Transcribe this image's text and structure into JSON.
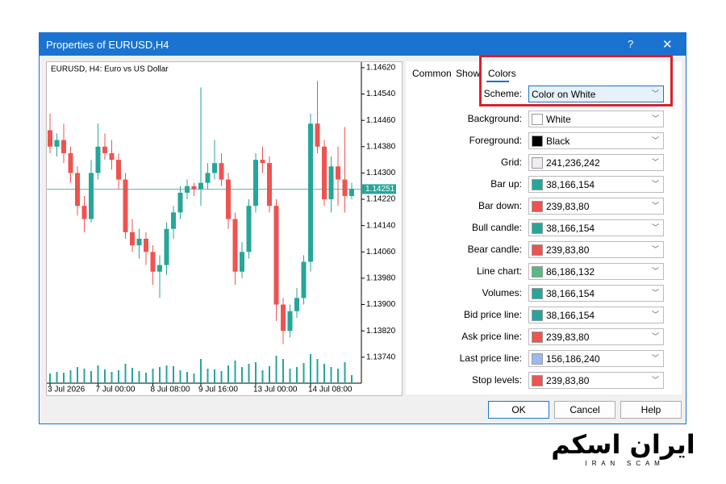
{
  "window": {
    "title": "Properties of EURUSD,H4",
    "help": "?",
    "close": "✕"
  },
  "chart_data": {
    "type": "candlestick",
    "title": "EURUSD, H4:  Euro vs US Dollar",
    "candles": [
      [
        1.1443,
        1.1448,
        1.1436,
        1.1438
      ],
      [
        1.1438,
        1.1442,
        1.1435,
        1.144
      ],
      [
        1.144,
        1.1445,
        1.1433,
        1.1436
      ],
      [
        1.1436,
        1.1438,
        1.1427,
        1.143
      ],
      [
        1.143,
        1.1432,
        1.1417,
        1.142
      ],
      [
        1.142,
        1.1423,
        1.1412,
        1.1416
      ],
      [
        1.1416,
        1.1434,
        1.1415,
        1.143
      ],
      [
        1.143,
        1.1445,
        1.1428,
        1.1438
      ],
      [
        1.1438,
        1.1442,
        1.1434,
        1.1436
      ],
      [
        1.1436,
        1.144,
        1.1431,
        1.1434
      ],
      [
        1.1434,
        1.1436,
        1.1425,
        1.1428
      ],
      [
        1.1428,
        1.143,
        1.141,
        1.1412
      ],
      [
        1.1412,
        1.1416,
        1.1406,
        1.1408
      ],
      [
        1.1408,
        1.1413,
        1.1404,
        1.141
      ],
      [
        1.141,
        1.1412,
        1.1402,
        1.1406
      ],
      [
        1.1406,
        1.1408,
        1.1396,
        1.14
      ],
      [
        1.14,
        1.1405,
        1.1392,
        1.1402
      ],
      [
        1.1402,
        1.1415,
        1.1399,
        1.1413
      ],
      [
        1.1413,
        1.142,
        1.141,
        1.1418
      ],
      [
        1.1418,
        1.1426,
        1.1416,
        1.1424
      ],
      [
        1.1424,
        1.1428,
        1.1422,
        1.1426
      ],
      [
        1.1426,
        1.1427,
        1.1423,
        1.1425
      ],
      [
        1.1425,
        1.1456,
        1.142,
        1.1427
      ],
      [
        1.1427,
        1.1433,
        1.1425,
        1.143
      ],
      [
        1.143,
        1.144,
        1.1428,
        1.1433
      ],
      [
        1.1433,
        1.1436,
        1.1426,
        1.1428
      ],
      [
        1.1428,
        1.143,
        1.1413,
        1.1416
      ],
      [
        1.1416,
        1.1418,
        1.1396,
        1.14
      ],
      [
        1.14,
        1.1409,
        1.1398,
        1.1406
      ],
      [
        1.1406,
        1.1422,
        1.1404,
        1.142
      ],
      [
        1.142,
        1.1436,
        1.1418,
        1.1434
      ],
      [
        1.1434,
        1.1438,
        1.143,
        1.1433
      ],
      [
        1.1433,
        1.1435,
        1.1418,
        1.142
      ],
      [
        1.142,
        1.1422,
        1.1385,
        1.139
      ],
      [
        1.139,
        1.1392,
        1.1378,
        1.1382
      ],
      [
        1.1382,
        1.139,
        1.138,
        1.1388
      ],
      [
        1.1388,
        1.1395,
        1.1386,
        1.1392
      ],
      [
        1.1392,
        1.1405,
        1.139,
        1.1403
      ],
      [
        1.1403,
        1.1448,
        1.14,
        1.1445
      ],
      [
        1.1445,
        1.1458,
        1.1436,
        1.1438
      ],
      [
        1.1438,
        1.144,
        1.142,
        1.1422
      ],
      [
        1.1422,
        1.1435,
        1.1418,
        1.1432
      ],
      [
        1.1432,
        1.1438,
        1.142,
        1.1428
      ],
      [
        1.1428,
        1.1444,
        1.1418,
        1.1423
      ],
      [
        1.1423,
        1.1427,
        1.1422,
        1.14251
      ]
    ],
    "volumes": [
      12,
      14,
      13,
      16,
      20,
      18,
      15,
      22,
      17,
      14,
      16,
      24,
      19,
      15,
      13,
      18,
      20,
      22,
      21,
      16,
      14,
      12,
      30,
      18,
      17,
      15,
      22,
      28,
      20,
      24,
      26,
      16,
      21,
      34,
      30,
      18,
      20,
      25,
      36,
      30,
      24,
      20,
      18,
      26,
      10
    ],
    "x": [
      "3 Jul 2026",
      null,
      null,
      null,
      null,
      null,
      null,
      "7 Jul 00:00",
      null,
      null,
      null,
      null,
      null,
      null,
      null,
      "8 Jul 08:00",
      null,
      null,
      null,
      null,
      null,
      null,
      "9 Jul 16:00",
      null,
      null,
      null,
      null,
      null,
      null,
      null,
      "13 Jul 00:00",
      null,
      null,
      null,
      null,
      null,
      null,
      null,
      "14 Jul 08:00",
      null,
      null,
      null,
      null,
      null,
      null
    ],
    "ylim": [
      1.13661,
      1.14637
    ],
    "yticks": [
      {
        "value": 1.1462,
        "label": "1.14620"
      },
      {
        "value": 1.1454,
        "label": "1.14540"
      },
      {
        "value": 1.1446,
        "label": "1.14460"
      },
      {
        "value": 1.1438,
        "label": "1.14380"
      },
      {
        "value": 1.143,
        "label": "1.14300"
      },
      {
        "value": 1.1422,
        "label": "1.14220"
      },
      {
        "value": 1.1414,
        "label": "1.14140"
      },
      {
        "value": 1.1406,
        "label": "1.14060"
      },
      {
        "value": 1.1398,
        "label": "1.13980"
      },
      {
        "value": 1.139,
        "label": "1.13900"
      },
      {
        "value": 1.1382,
        "label": "1.13820"
      },
      {
        "value": 1.1374,
        "label": "1.13740"
      }
    ],
    "last_price": {
      "value": 1.14251,
      "label": "1.14251"
    },
    "up_color": "#26a69a",
    "down_color": "#ef5350",
    "volume_color": "#26a69a"
  },
  "tabs": [
    "Common",
    "Show",
    "Colors"
  ],
  "scheme": {
    "label": "Scheme:",
    "value": "Color on White"
  },
  "colors": [
    {
      "label": "Background:",
      "value": "White",
      "swatch": "#ffffff"
    },
    {
      "label": "Foreground:",
      "value": "Black",
      "swatch": "#000000"
    },
    {
      "label": "Grid:",
      "value": "241,236,242",
      "swatch": "#f1ecf2"
    },
    {
      "label": "Bar up:",
      "value": "38,166,154",
      "swatch": "#26a69a"
    },
    {
      "label": "Bar down:",
      "value": "239,83,80",
      "swatch": "#ef5350"
    },
    {
      "label": "Bull candle:",
      "value": "38,166,154",
      "swatch": "#26a69a"
    },
    {
      "label": "Bear candle:",
      "value": "239,83,80",
      "swatch": "#ef5350"
    },
    {
      "label": "Line chart:",
      "value": "86,186,132",
      "swatch": "#56ba84"
    },
    {
      "label": "Volumes:",
      "value": "38,166,154",
      "swatch": "#26a69a"
    },
    {
      "label": "Bid price line:",
      "value": "38,166,154",
      "swatch": "#26a69a"
    },
    {
      "label": "Ask price line:",
      "value": "239,83,80",
      "swatch": "#ef5350"
    },
    {
      "label": "Last price line:",
      "value": "156,186,240",
      "swatch": "#9cbaf0"
    },
    {
      "label": "Stop levels:",
      "value": "239,83,80",
      "swatch": "#ef5350"
    }
  ],
  "buttons": [
    "OK",
    "Cancel",
    "Help"
  ],
  "watermark": {
    "brand": "ایران اسکم",
    "tagline": "I R A N   S C A M"
  }
}
